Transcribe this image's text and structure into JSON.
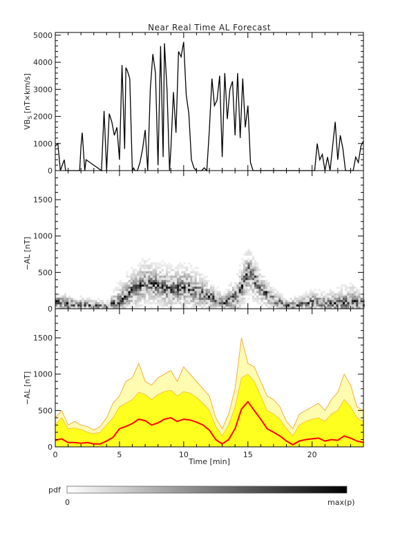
{
  "figure": {
    "title": "Near Real Time AL Forecast",
    "xlabel": "Time [min]",
    "colorbar": {
      "label": "pdf",
      "min_label": "0",
      "max_label": "max(p)"
    }
  },
  "chart_data": [
    {
      "type": "line",
      "ylabel_main": "VB",
      "ylabel_sub": "S",
      "ylabel_rest": " [nT×km/s]",
      "xlim": [
        0,
        24
      ],
      "ylim": [
        0,
        5100
      ],
      "xticks": [
        0,
        5,
        10,
        15,
        20
      ],
      "yticks": [
        0,
        1000,
        2000,
        3000,
        4000,
        5000
      ],
      "series": [
        {
          "x": [
            0,
            0.2,
            0.4,
            0.7,
            0.8,
            1.0,
            1.5,
            1.9,
            2.0,
            2.1,
            2.3,
            2.4,
            3.6,
            3.8,
            4.0,
            4.2,
            4.4,
            4.6,
            4.8,
            5.0,
            5.2,
            5.4,
            5.5,
            5.6,
            5.8,
            6.0,
            6.1,
            6.2,
            6.4,
            6.6,
            6.8,
            7.0,
            7.2,
            7.4,
            7.6,
            7.8,
            8.0,
            8.2,
            8.4,
            8.5,
            8.7,
            8.9,
            9.0,
            9.2,
            9.4,
            9.6,
            9.8,
            10.0,
            10.2,
            10.4,
            10.6,
            10.8,
            11.0,
            11.2,
            11.4,
            11.6,
            11.8,
            12.0,
            12.2,
            12.4,
            12.6,
            12.8,
            13.0,
            13.2,
            13.4,
            13.6,
            13.8,
            14.0,
            14.2,
            14.4,
            14.6,
            14.8,
            15.0,
            15.2,
            15.4,
            15.6,
            15.8,
            16.0,
            16.2,
            16.4,
            17.0,
            18.0,
            19.0,
            19.5,
            19.8,
            20.0,
            20.2,
            20.4,
            20.6,
            20.8,
            21.0,
            21.2,
            21.4,
            21.6,
            21.8,
            22.0,
            22.2,
            22.4,
            22.6,
            22.8,
            23.0,
            23.2,
            23.4,
            23.6,
            23.8,
            24.0
          ],
          "y": [
            900,
            1000,
            0,
            400,
            0,
            0,
            0,
            0,
            900,
            1400,
            0,
            400,
            0,
            2200,
            0,
            2100,
            1800,
            1300,
            1600,
            400,
            3900,
            800,
            3800,
            3700,
            3400,
            0,
            100,
            0,
            0,
            300,
            800,
            1500,
            0,
            3000,
            4300,
            3600,
            200,
            4600,
            500,
            4700,
            3000,
            0,
            800,
            2900,
            1400,
            4400,
            4200,
            4750,
            2800,
            2100,
            400,
            100,
            0,
            0,
            0,
            100,
            0,
            1500,
            3400,
            2400,
            2600,
            3500,
            500,
            3600,
            1900,
            3000,
            3300,
            1300,
            3600,
            1200,
            3400,
            1600,
            2400,
            300,
            0,
            0,
            0,
            0,
            0,
            0,
            0,
            0,
            0,
            0,
            0,
            0,
            0,
            1000,
            400,
            600,
            0,
            500,
            0,
            900,
            1800,
            400,
            1300,
            800,
            0,
            0,
            0,
            0,
            500,
            300,
            900,
            1100
          ]
        }
      ]
    },
    {
      "type": "heatmap",
      "ylabel": "−AL [nT]",
      "xlim": [
        0,
        24
      ],
      "ylim": [
        0,
        1900
      ],
      "xticks": [
        0,
        5,
        10,
        15,
        20
      ],
      "yticks": [
        0,
        500,
        1000,
        1500
      ],
      "mode_x": [
        0,
        1,
        2,
        3,
        4,
        5,
        6,
        7,
        8,
        9,
        10,
        11,
        12,
        13,
        14,
        15,
        16,
        17,
        18,
        19,
        20,
        21,
        22,
        23,
        24
      ],
      "mode_y": [
        80,
        50,
        40,
        30,
        20,
        100,
        250,
        350,
        300,
        250,
        280,
        220,
        150,
        60,
        150,
        500,
        250,
        100,
        30,
        40,
        80,
        50,
        60,
        80,
        60
      ],
      "spread_top": [
        350,
        280,
        200,
        150,
        150,
        550,
        650,
        700,
        650,
        700,
        700,
        650,
        450,
        250,
        600,
        800,
        500,
        300,
        200,
        250,
        350,
        350,
        450,
        550,
        300
      ]
    },
    {
      "type": "area",
      "ylabel": "−AL [nT]",
      "xlim": [
        0,
        24
      ],
      "ylim": [
        0,
        1900
      ],
      "xticks": [
        0,
        5,
        10,
        15,
        20
      ],
      "yticks": [
        0,
        500,
        1000,
        1500
      ],
      "x": [
        0,
        0.5,
        1,
        1.5,
        2,
        2.5,
        3,
        3.5,
        4,
        4.5,
        5,
        5.5,
        6,
        6.5,
        7,
        7.5,
        8,
        8.5,
        9,
        9.5,
        10,
        10.5,
        11,
        11.5,
        12,
        12.5,
        13,
        13.5,
        14,
        14.5,
        15,
        15.5,
        16,
        16.5,
        17,
        17.5,
        18,
        18.5,
        19,
        19.5,
        20,
        20.5,
        21,
        21.5,
        22,
        22.5,
        23,
        23.5,
        24
      ],
      "median": [
        90,
        110,
        60,
        60,
        50,
        60,
        40,
        40,
        80,
        130,
        250,
        280,
        320,
        380,
        360,
        300,
        330,
        380,
        400,
        350,
        380,
        370,
        340,
        300,
        230,
        100,
        40,
        100,
        250,
        520,
        620,
        500,
        380,
        250,
        200,
        150,
        80,
        30,
        80,
        100,
        110,
        120,
        80,
        100,
        90,
        150,
        120,
        80,
        60
      ],
      "upper": [
        300,
        400,
        250,
        260,
        240,
        200,
        180,
        200,
        300,
        400,
        550,
        600,
        650,
        750,
        720,
        650,
        720,
        760,
        780,
        700,
        760,
        740,
        680,
        600,
        500,
        280,
        150,
        300,
        550,
        950,
        1000,
        900,
        700,
        500,
        450,
        380,
        250,
        150,
        300,
        350,
        380,
        400,
        350,
        450,
        500,
        650,
        550,
        400,
        350
      ],
      "max": [
        400,
        500,
        300,
        350,
        300,
        280,
        230,
        280,
        400,
        600,
        700,
        900,
        950,
        1150,
        900,
        850,
        950,
        1000,
        1050,
        900,
        1100,
        1000,
        900,
        800,
        700,
        400,
        250,
        450,
        800,
        1500,
        1150,
        1100,
        900,
        700,
        650,
        550,
        350,
        250,
        450,
        500,
        550,
        600,
        500,
        650,
        750,
        1000,
        850,
        550,
        500
      ]
    }
  ]
}
